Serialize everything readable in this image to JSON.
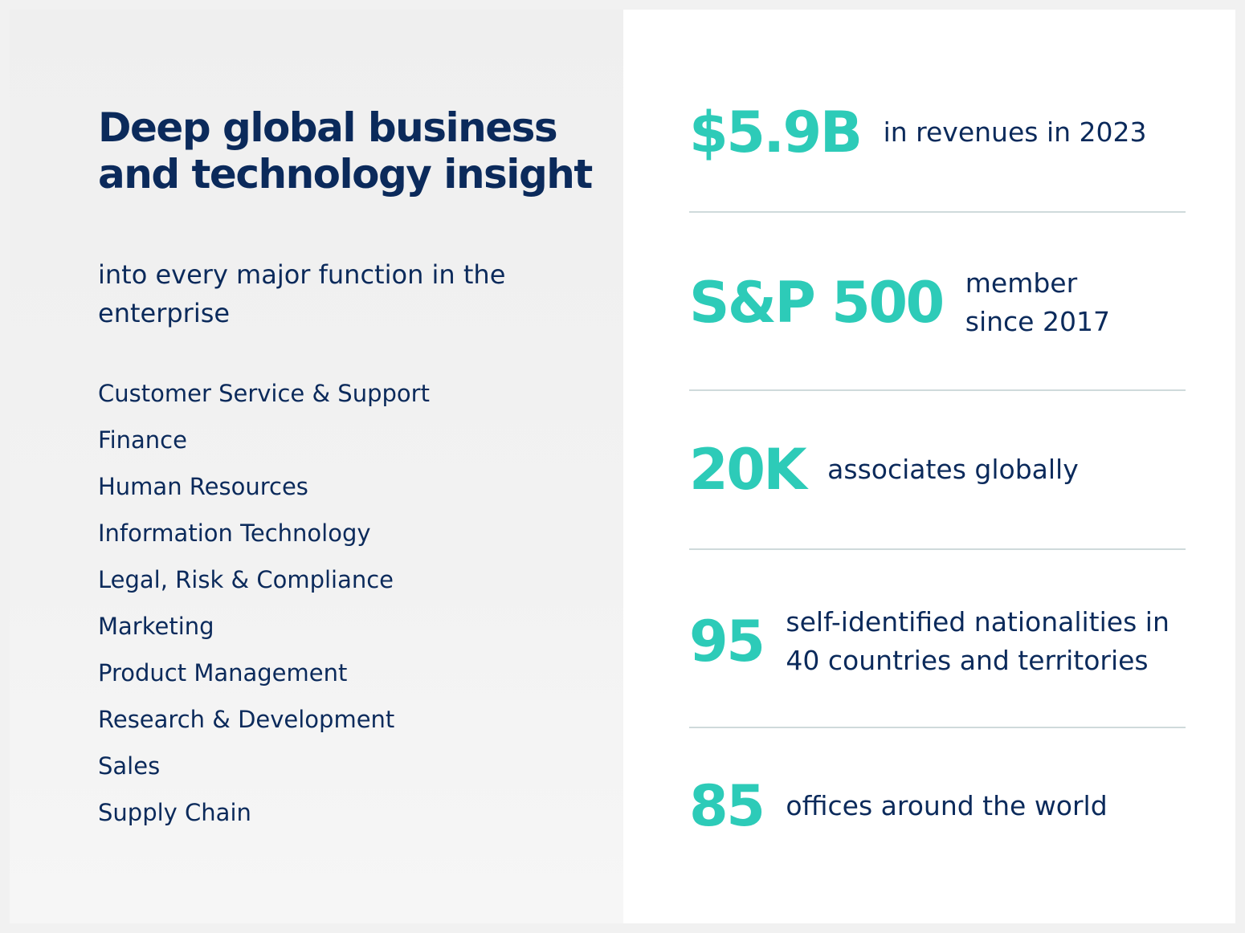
{
  "intro": {
    "headline": "Deep global business and technology insight",
    "subhead": "into every major function in the enterprise"
  },
  "functions": [
    "Customer Service & Support",
    "Finance",
    "Human Resources",
    "Information Technology",
    "Legal, Risk & Compliance",
    "Marketing",
    "Product Management",
    "Research & Development",
    "Sales",
    "Supply Chain"
  ],
  "stats": [
    {
      "value": "$5.9B",
      "description": "in revenues in 2023"
    },
    {
      "value": "S&P 500",
      "description": "member since 2017"
    },
    {
      "value": "20K",
      "description": "associates globally"
    },
    {
      "value": "95",
      "description": "self-identified nationalities in 40 countries and territories"
    },
    {
      "value": "85",
      "description": "offices around the world"
    }
  ],
  "colors": {
    "navy": "#0b2a5b",
    "teal": "#2dcbb8",
    "divider": "#cfdadb",
    "panel_left": "#f1f1f1",
    "panel_right": "#ffffff"
  }
}
